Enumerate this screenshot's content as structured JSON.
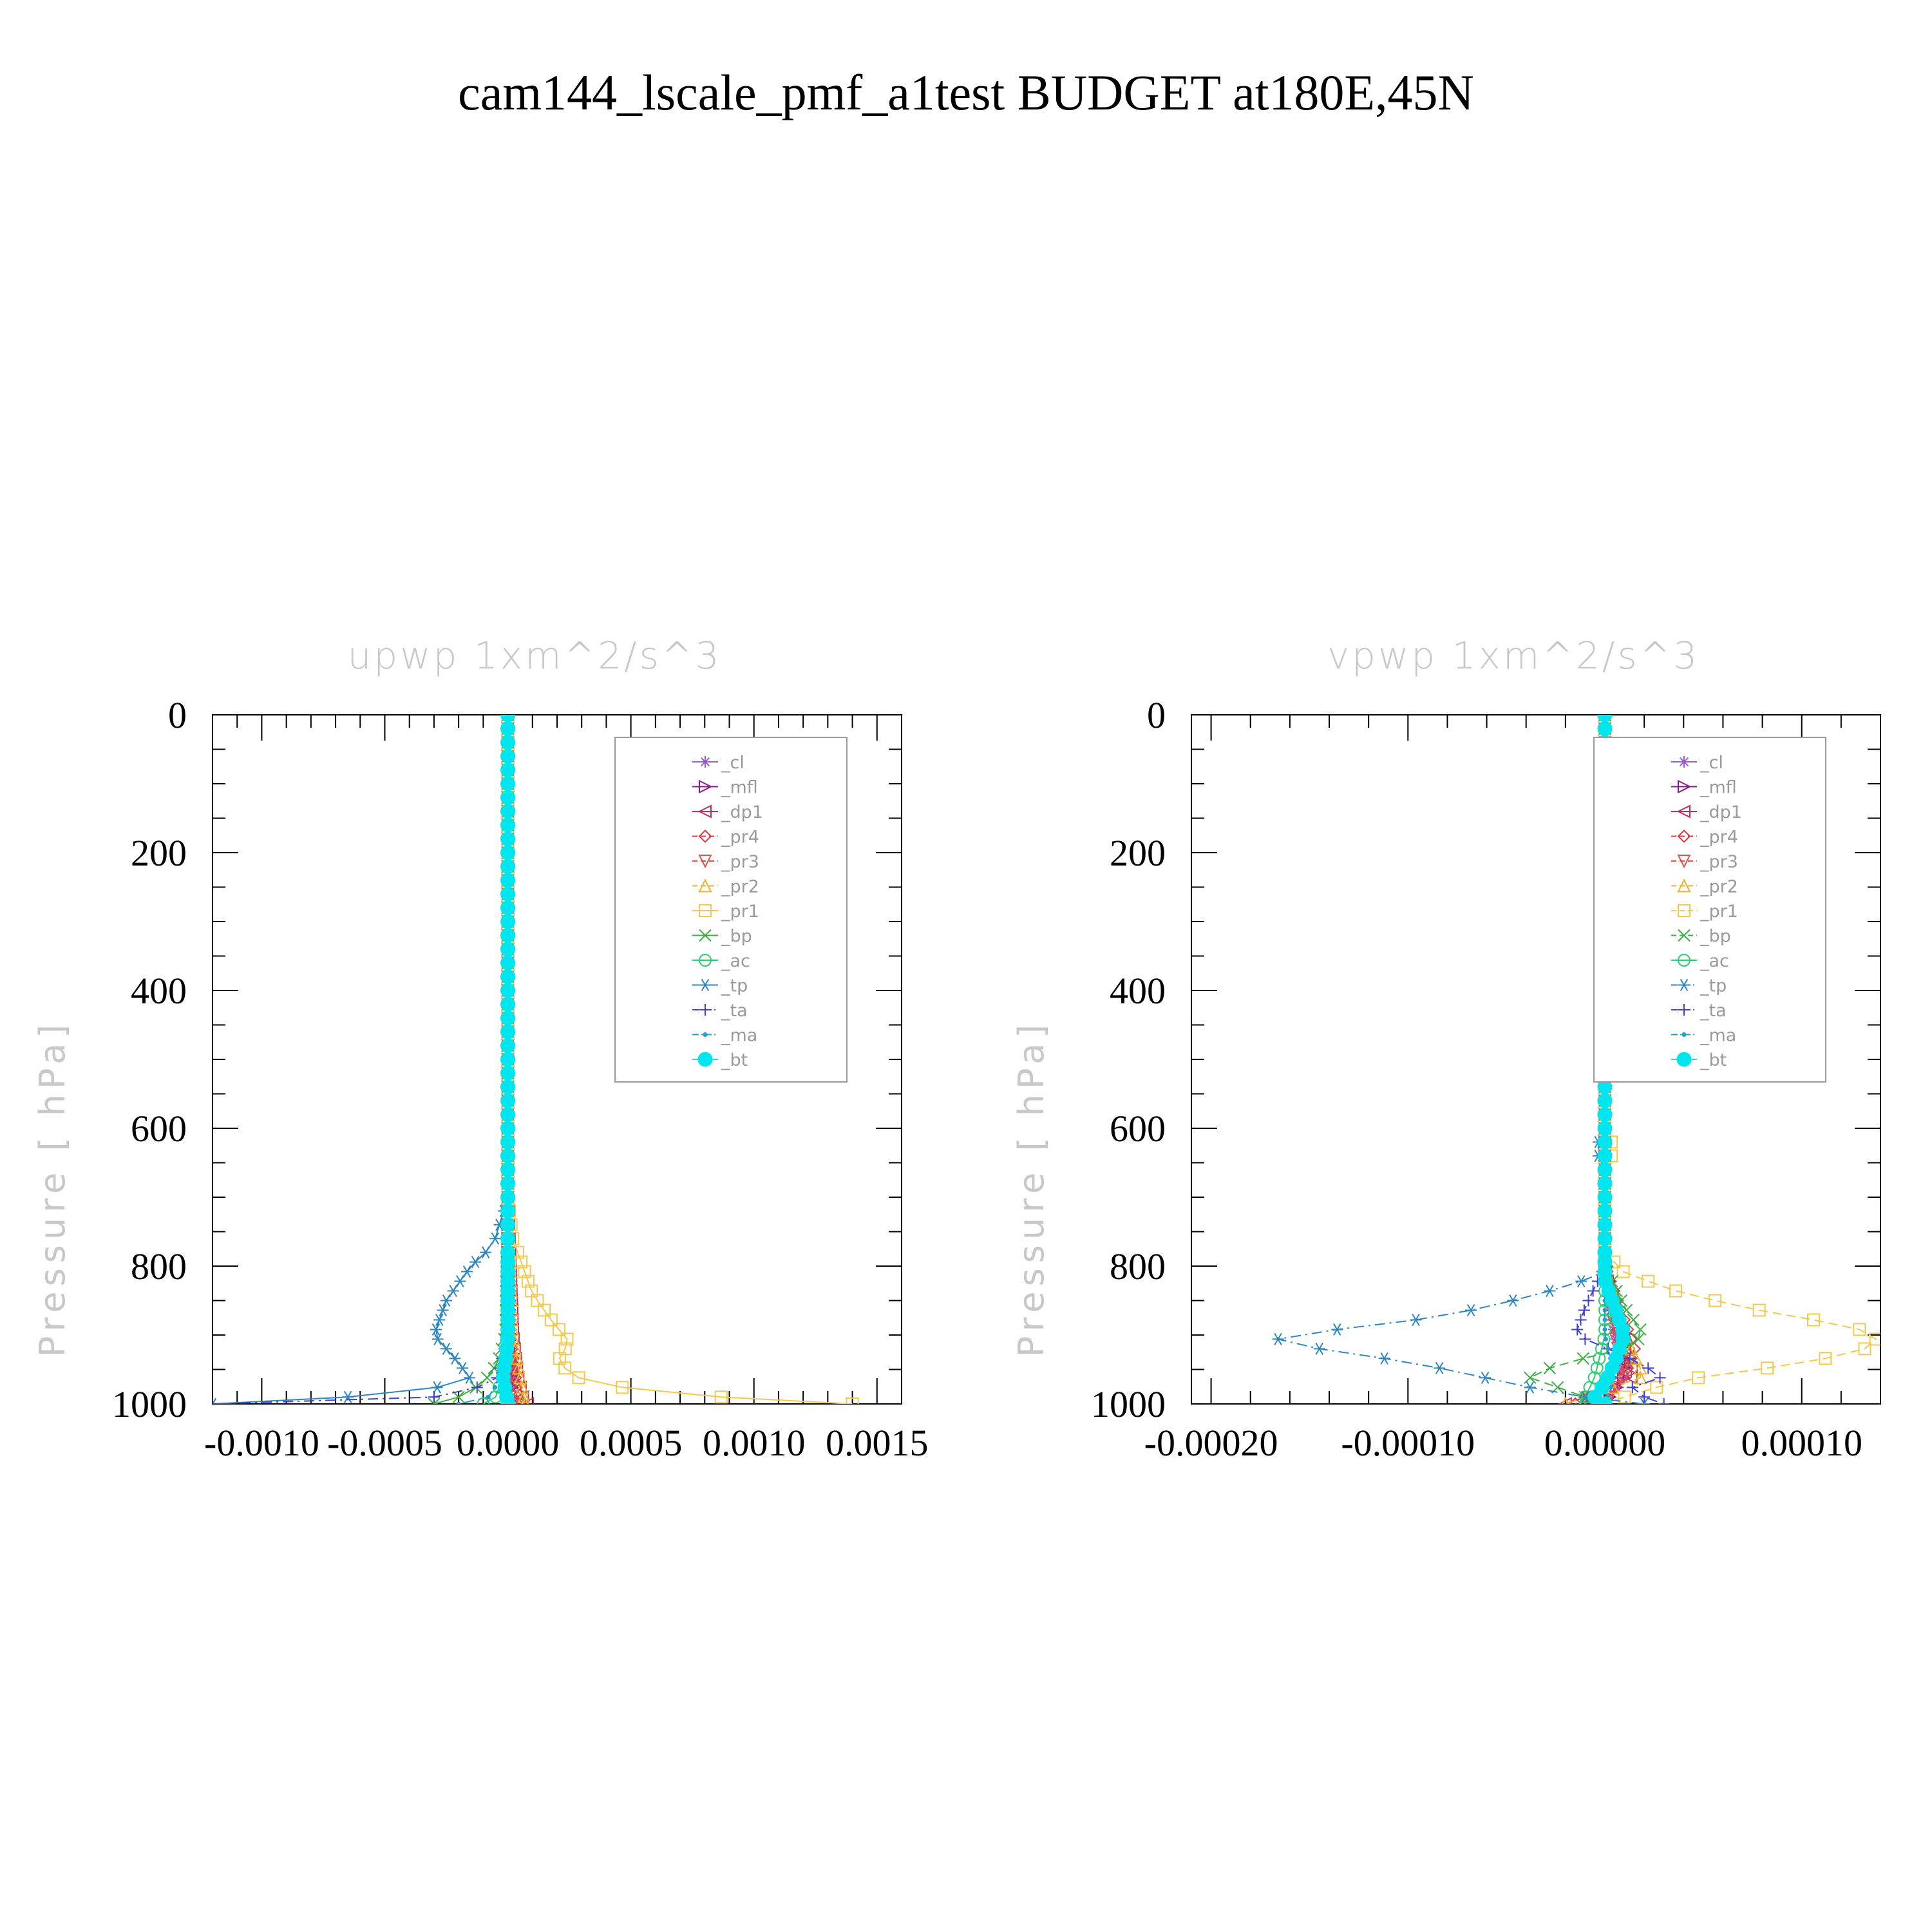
{
  "figure": {
    "title": "cam144_lscale_pmf_a1test  BUDGET at180E,45N"
  },
  "chart_data": [
    {
      "type": "line",
      "title": "upwp    1xm^2/s^3",
      "xlabel": "",
      "ylabel": "Pressure [ hPa]",
      "xlim": [
        -0.0012,
        0.0016
      ],
      "ylim": [
        1000,
        0
      ],
      "x_ticks": [
        "-0.0010",
        "-0.0005",
        "0.0000",
        "0.0005",
        "0.0010",
        "0.0015"
      ],
      "x_tick_values": [
        -0.001,
        -0.0005,
        0,
        0.0005,
        0.001,
        0.0015
      ],
      "y_ticks": [
        "0",
        "200",
        "400",
        "600",
        "800",
        "1000"
      ],
      "y_tick_values": [
        0,
        200,
        400,
        600,
        800,
        1000
      ],
      "legend_position": "top-right",
      "series": [
        {
          "name": "_cl",
          "color": "#9b59d6",
          "marker": "star",
          "dash": "solid",
          "points": [
            [
              0,
              0
            ],
            [
              0,
              700
            ],
            [
              0,
              900
            ],
            [
              2e-05,
              960
            ],
            [
              1e-05,
              1000
            ]
          ]
        },
        {
          "name": "_mfl",
          "color": "#8b1a8b",
          "marker": "tri-right",
          "dash": "solid",
          "points": [
            [
              0,
              0
            ],
            [
              0,
              700
            ],
            [
              0,
              900
            ],
            [
              2e-05,
              960
            ],
            [
              1e-05,
              1000
            ]
          ]
        },
        {
          "name": "_dp1",
          "color": "#c0305a",
          "marker": "tri-left",
          "dash": "solid",
          "points": [
            [
              0,
              0
            ],
            [
              0,
              700
            ],
            [
              2e-05,
              900
            ],
            [
              4e-05,
              960
            ],
            [
              6e-05,
              990
            ],
            [
              8e-05,
              1000
            ]
          ]
        },
        {
          "name": "_pr4",
          "color": "#d04040",
          "marker": "diamond",
          "dash": "dashed",
          "points": [
            [
              0,
              0
            ],
            [
              0,
              700
            ],
            [
              1e-05,
              900
            ],
            [
              3e-05,
              960
            ],
            [
              4e-05,
              1000
            ]
          ]
        },
        {
          "name": "_pr3",
          "color": "#e05050",
          "marker": "tri-down",
          "dash": "dashed",
          "points": [
            [
              0,
              0
            ],
            [
              0,
              700
            ],
            [
              0,
              900
            ],
            [
              1e-05,
              960
            ],
            [
              2e-05,
              1000
            ]
          ]
        },
        {
          "name": "_pr2",
          "color": "#f0b030",
          "marker": "tri-up",
          "dash": "dashed",
          "points": [
            [
              0,
              0
            ],
            [
              0,
              700
            ],
            [
              2e-05,
              900
            ],
            [
              5e-05,
              960
            ],
            [
              7e-05,
              1000
            ]
          ]
        },
        {
          "name": "_pr1",
          "color": "#f2c94c",
          "marker": "square",
          "dash": "solid",
          "points": [
            [
              0,
              0
            ],
            [
              0,
              700
            ],
            [
              2e-05,
              760
            ],
            [
              6e-05,
              800
            ],
            [
              0.0001,
              840
            ],
            [
              0.00018,
              880
            ],
            [
              0.00025,
              910
            ],
            [
              0.0002,
              940
            ],
            [
              0.0003,
              965
            ],
            [
              0.0006,
              985
            ],
            [
              0.0014,
              1000
            ]
          ]
        },
        {
          "name": "_bp",
          "color": "#3cb043",
          "marker": "x",
          "dash": "solid",
          "points": [
            [
              0,
              0
            ],
            [
              0,
              700
            ],
            [
              -1e-05,
              900
            ],
            [
              -4e-05,
              940
            ],
            [
              -0.0001,
              970
            ],
            [
              -0.0002,
              990
            ],
            [
              -0.0003,
              1000
            ]
          ]
        },
        {
          "name": "_ac",
          "color": "#2ecc71",
          "marker": "circle",
          "dash": "solid",
          "points": [
            [
              0,
              0
            ],
            [
              0,
              700
            ],
            [
              0,
              900
            ],
            [
              -2e-05,
              960
            ],
            [
              -5e-05,
              990
            ],
            [
              -0.0001,
              1000
            ]
          ]
        },
        {
          "name": "_tp",
          "color": "#2e86c1",
          "marker": "asterisk",
          "dash": "solid",
          "points": [
            [
              0,
              0
            ],
            [
              0,
              700
            ],
            [
              -6e-05,
              770
            ],
            [
              -0.00015,
              800
            ],
            [
              -0.00025,
              850
            ],
            [
              -0.0003,
              900
            ],
            [
              -0.0002,
              940
            ],
            [
              -0.00015,
              965
            ],
            [
              -0.0004,
              985
            ],
            [
              -0.0009,
              995
            ],
            [
              -0.0012,
              1000
            ]
          ]
        },
        {
          "name": "_ta",
          "color": "#4040c8",
          "marker": "plus",
          "dash": "dashdot",
          "points": [
            [
              0,
              0
            ],
            [
              0,
              700
            ],
            [
              0,
              900
            ],
            [
              -5e-05,
              970
            ],
            [
              -0.0003,
              990
            ],
            [
              -0.0012,
              1000
            ]
          ]
        },
        {
          "name": "_ma",
          "color": "#1f9fd0",
          "marker": "dot",
          "dash": "dashdot",
          "points": [
            [
              0,
              0
            ],
            [
              0,
              700
            ],
            [
              0,
              900
            ],
            [
              -2e-05,
              960
            ],
            [
              -8e-05,
              990
            ],
            [
              -0.0002,
              1000
            ]
          ]
        },
        {
          "name": "_bt",
          "color": "#00e5ee",
          "marker": "filled-circle",
          "dash": "solid",
          "points": [
            [
              0,
              0
            ],
            [
              0,
              700
            ],
            [
              0,
              900
            ],
            [
              -1e-05,
              940
            ],
            [
              -2e-05,
              960
            ],
            [
              -1e-05,
              980
            ],
            [
              0,
              1000
            ]
          ]
        }
      ]
    },
    {
      "type": "line",
      "title": "vpwp    1xm^2/s^3",
      "xlabel": "",
      "ylabel": "Pressure [ hPa]",
      "xlim": [
        -0.00021,
        0.00014
      ],
      "ylim": [
        1000,
        0
      ],
      "x_ticks": [
        "-0.00020",
        "-0.00010",
        "0.00000",
        "0.00010"
      ],
      "x_tick_values": [
        -0.0002,
        -0.0001,
        0,
        0.0001
      ],
      "y_ticks": [
        "0",
        "200",
        "400",
        "600",
        "800",
        "1000"
      ],
      "y_tick_values": [
        0,
        200,
        400,
        600,
        800,
        1000
      ],
      "legend_position": "top-right",
      "series": [
        {
          "name": "_cl",
          "color": "#9b59d6",
          "marker": "star",
          "dash": "solid",
          "points": [
            [
              0,
              0
            ],
            [
              0,
              800
            ],
            [
              5e-06,
              900
            ],
            [
              1e-05,
              960
            ],
            [
              0,
              1000
            ]
          ]
        },
        {
          "name": "_mfl",
          "color": "#8b1a8b",
          "marker": "tri-right",
          "dash": "solid",
          "points": [
            [
              0,
              0
            ],
            [
              0,
              800
            ],
            [
              1e-05,
              900
            ],
            [
              1e-05,
              960
            ],
            [
              0,
              1000
            ]
          ]
        },
        {
          "name": "_dp1",
          "color": "#c0305a",
          "marker": "tri-left",
          "dash": "solid",
          "points": [
            [
              0,
              0
            ],
            [
              0,
              800
            ],
            [
              5e-06,
              880
            ],
            [
              1e-05,
              920
            ],
            [
              1.5e-05,
              960
            ],
            [
              -1e-05,
              990
            ],
            [
              -2e-05,
              1000
            ]
          ]
        },
        {
          "name": "_pr4",
          "color": "#d04040",
          "marker": "diamond",
          "dash": "dashed",
          "points": [
            [
              0,
              0
            ],
            [
              0,
              800
            ],
            [
              1e-05,
              880
            ],
            [
              1.5e-05,
              920
            ],
            [
              1e-05,
              960
            ],
            [
              -1e-05,
              990
            ],
            [
              -1.5e-05,
              1000
            ]
          ]
        },
        {
          "name": "_pr3",
          "color": "#e05050",
          "marker": "tri-down",
          "dash": "dashed",
          "points": [
            [
              0,
              0
            ],
            [
              0,
              800
            ],
            [
              5e-06,
              900
            ],
            [
              1e-05,
              960
            ],
            [
              0,
              1000
            ]
          ]
        },
        {
          "name": "_pr2",
          "color": "#f0b030",
          "marker": "tri-up",
          "dash": "dashed",
          "points": [
            [
              0,
              0
            ],
            [
              0,
              800
            ],
            [
              1e-05,
              900
            ],
            [
              2e-05,
              960
            ],
            [
              -2e-05,
              1000
            ]
          ]
        },
        {
          "name": "_pr1",
          "color": "#f2c94c",
          "marker": "square",
          "dash": "dashed",
          "points": [
            [
              0,
              0
            ],
            [
              0,
              600
            ],
            [
              5e-06,
              630
            ],
            [
              0,
              660
            ],
            [
              0,
              780
            ],
            [
              1e-05,
              810
            ],
            [
              4e-05,
              840
            ],
            [
              8e-05,
              865
            ],
            [
              0.00012,
              885
            ],
            [
              0.00014,
              900
            ],
            [
              0.00013,
              925
            ],
            [
              9e-05,
              945
            ],
            [
              4e-05,
              965
            ],
            [
              1.5e-05,
              985
            ],
            [
              0,
              1000
            ]
          ]
        },
        {
          "name": "_bp",
          "color": "#3cb043",
          "marker": "x",
          "dash": "dashed",
          "points": [
            [
              0,
              0
            ],
            [
              0,
              800
            ],
            [
              1e-05,
              860
            ],
            [
              2e-05,
              900
            ],
            [
              1e-05,
              920
            ],
            [
              -2e-05,
              940
            ],
            [
              -4e-05,
              960
            ],
            [
              -2e-05,
              980
            ],
            [
              0,
              1000
            ]
          ]
        },
        {
          "name": "_ac",
          "color": "#2ecc71",
          "marker": "circle",
          "dash": "solid",
          "points": [
            [
              0,
              0
            ],
            [
              0,
              800
            ],
            [
              0,
              900
            ],
            [
              -5e-06,
              960
            ],
            [
              -1e-05,
              990
            ],
            [
              -1e-05,
              1000
            ]
          ]
        },
        {
          "name": "_tp",
          "color": "#2e86c1",
          "marker": "asterisk",
          "dash": "dashdot",
          "points": [
            [
              0,
              0
            ],
            [
              0,
              600
            ],
            [
              -5e-06,
              630
            ],
            [
              0,
              660
            ],
            [
              0,
              810
            ],
            [
              -2e-05,
              830
            ],
            [
              -6e-05,
              860
            ],
            [
              -0.0001,
              880
            ],
            [
              -0.00016,
              900
            ],
            [
              -0.00017,
              910
            ],
            [
              -0.00012,
              930
            ],
            [
              -8e-05,
              950
            ],
            [
              -4e-05,
              975
            ],
            [
              -1e-05,
              990
            ],
            [
              2e-05,
              1000
            ]
          ]
        },
        {
          "name": "_ta",
          "color": "#4040c8",
          "marker": "plus",
          "dash": "dashdot",
          "points": [
            [
              0,
              0
            ],
            [
              0,
              800
            ],
            [
              -1e-05,
              860
            ],
            [
              -1.5e-05,
              900
            ],
            [
              1e-05,
              930
            ],
            [
              3e-05,
              960
            ],
            [
              1e-05,
              980
            ],
            [
              3e-05,
              1000
            ]
          ]
        },
        {
          "name": "_ma",
          "color": "#1f9fd0",
          "marker": "dot",
          "dash": "dashdot",
          "points": [
            [
              0,
              0
            ],
            [
              0,
              800
            ],
            [
              0,
              900
            ],
            [
              5e-06,
              960
            ],
            [
              0,
              1000
            ]
          ]
        },
        {
          "name": "_bt",
          "color": "#00e5ee",
          "marker": "filled-circle",
          "dash": "solid",
          "points": [
            [
              0,
              0
            ],
            [
              0,
              820
            ],
            [
              5e-06,
              860
            ],
            [
              1e-05,
              900
            ],
            [
              5e-06,
              940
            ],
            [
              0,
              970
            ],
            [
              -5e-06,
              990
            ],
            [
              0,
              1000
            ]
          ]
        }
      ]
    }
  ]
}
